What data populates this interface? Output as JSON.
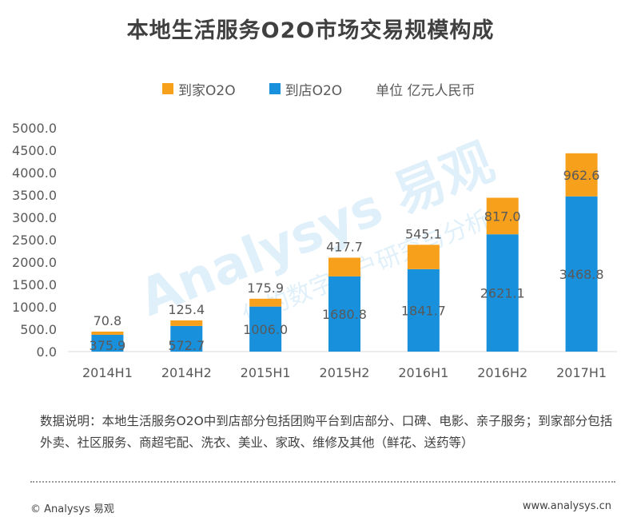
{
  "title": "本地生活服务O2O市场交易规模构成",
  "legend": {
    "home_label": "到家O2O",
    "store_label": "到店O2O",
    "unit": "单位 亿元人民币"
  },
  "colors": {
    "home": "#F7A01B",
    "store": "#1890DC",
    "axis": "#d9d9d9",
    "text": "#595959"
  },
  "chart_data": {
    "type": "bar",
    "stacked": true,
    "title": "本地生活服务O2O市场交易规模构成",
    "categories": [
      "2014H1",
      "2014H2",
      "2015H1",
      "2015H2",
      "2016H1",
      "2016H2",
      "2017H1"
    ],
    "series": [
      {
        "name": "到店O2O",
        "values": [
          375.9,
          572.7,
          1006.0,
          1680.8,
          1841.7,
          2621.1,
          3468.8
        ]
      },
      {
        "name": "到家O2O",
        "values": [
          70.8,
          125.4,
          175.9,
          417.7,
          545.1,
          817.0,
          962.6
        ]
      }
    ],
    "ylim": [
      0,
      5000
    ],
    "yticks": [
      0,
      500,
      1000,
      1500,
      2000,
      2500,
      3000,
      3500,
      4000,
      4500,
      5000
    ],
    "xlabel": "",
    "ylabel": "单位 亿元人民币",
    "legend_position": "top"
  },
  "note": "数据说明：本地生活服务O2O中到店部分包括团购平台到店部分、口碑、电影、亲子服务；到家部分包括外卖、社区服务、商超宅配、洗衣、美业、家政、维修及其他（鲜花、送药等）",
  "footer": {
    "left": "© Analysys 易观",
    "right": "www.analysys.cn"
  },
  "watermark": {
    "brand": "Analysys 易观",
    "sub": "你的数字用户研究与分析"
  }
}
